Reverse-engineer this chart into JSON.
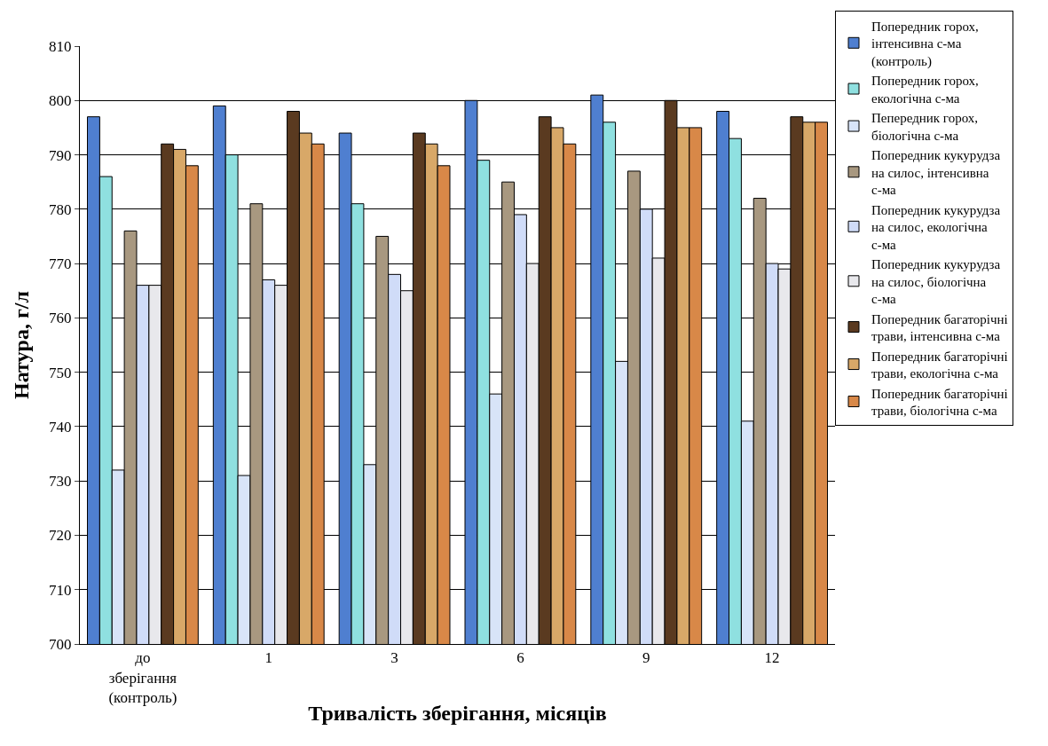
{
  "chart_data": {
    "type": "bar",
    "xlabel": "Тривалість зберігання, місяців",
    "ylabel": "Натура, г/л",
    "categories": [
      "до зберігання (контроль)",
      "1",
      "3",
      "6",
      "9",
      "12"
    ],
    "series": [
      {
        "name": "Попередник горох, інтенсивна с-ма (контроль)",
        "color": "#4f7fd0",
        "values": [
          797,
          799,
          794,
          800,
          801,
          798
        ]
      },
      {
        "name": "Попередник горох, екологічна с-ма",
        "color": "#8fe0e0",
        "values": [
          786,
          790,
          781,
          789,
          796,
          793
        ]
      },
      {
        "name": "Пепередник горох, біологічна с-ма",
        "color": "#d8e4f8",
        "values": [
          732,
          731,
          733,
          746,
          752,
          741
        ]
      },
      {
        "name": "Попередник кукурудза на силос, інтенсивна с-ма",
        "color": "#a89880",
        "values": [
          776,
          781,
          775,
          785,
          787,
          782
        ]
      },
      {
        "name": "Попередник кукурудза на силос, екологічна с-ма",
        "color": "#d0dcf8",
        "values": [
          766,
          767,
          768,
          779,
          780,
          770
        ]
      },
      {
        "name": "Попередник кукурудза на силос, біологічна с-ма",
        "color": "#e8e8ec",
        "values": [
          766,
          766,
          765,
          770,
          771,
          769
        ]
      },
      {
        "name": "Попередник багаторічні трави, інтенсивна с-ма",
        "color": "#5a3a20",
        "values": [
          792,
          798,
          794,
          797,
          800,
          797
        ]
      },
      {
        "name": "Попередник багаторічні трави, екологічна с-ма",
        "color": "#d8a868",
        "values": [
          791,
          794,
          792,
          795,
          795,
          796
        ]
      },
      {
        "name": "Попередник багаторічні трави, біологічна с-ма",
        "color": "#d88848",
        "values": [
          788,
          792,
          788,
          792,
          795,
          796
        ]
      }
    ],
    "ylim": [
      700,
      810
    ],
    "yticks": [
      700,
      710,
      720,
      730,
      740,
      750,
      760,
      770,
      780,
      790,
      800,
      810
    ],
    "grid": "y",
    "legend": "right"
  }
}
